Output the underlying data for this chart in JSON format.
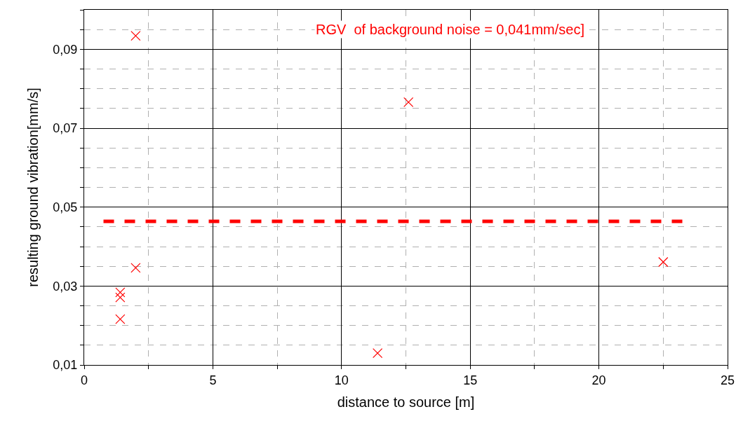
{
  "chart_data": {
    "type": "scatter",
    "xlabel": "distance to source [m]",
    "ylabel": "resulting ground vibration[mm/s]",
    "annotations": [
      "RGV  of background noise = 0,041mm/sec]"
    ],
    "series": [
      {
        "color": "#ff0000",
        "marker": "cross",
        "x": [
          2.0,
          12.6,
          2.0,
          1.4,
          1.4,
          1.4,
          11.4,
          22.5
        ],
        "values": [
          0.0934,
          0.0766,
          0.0346,
          0.0284,
          0.0271,
          0.0216,
          0.013,
          0.0361
        ]
      },
      {
        "type": "line",
        "color": "#ff0000",
        "line_style": "dashed",
        "x": [
          0.75,
          23.3
        ],
        "values": [
          0.0464,
          0.0464
        ]
      }
    ],
    "xlim": [
      0,
      25
    ],
    "xticks": [
      0,
      5,
      10,
      15,
      20,
      25
    ],
    "ylim": [
      0.01,
      0.1
    ],
    "yticks": [
      {
        "value": 0.01,
        "label": "0,01"
      },
      {
        "value": 0.03,
        "label": "0,03"
      },
      {
        "value": 0.05,
        "label": "0,05"
      },
      {
        "value": 0.07,
        "label": "0,07"
      },
      {
        "value": 0.09,
        "label": "0,09"
      }
    ],
    "grid": true,
    "legend": false
  }
}
